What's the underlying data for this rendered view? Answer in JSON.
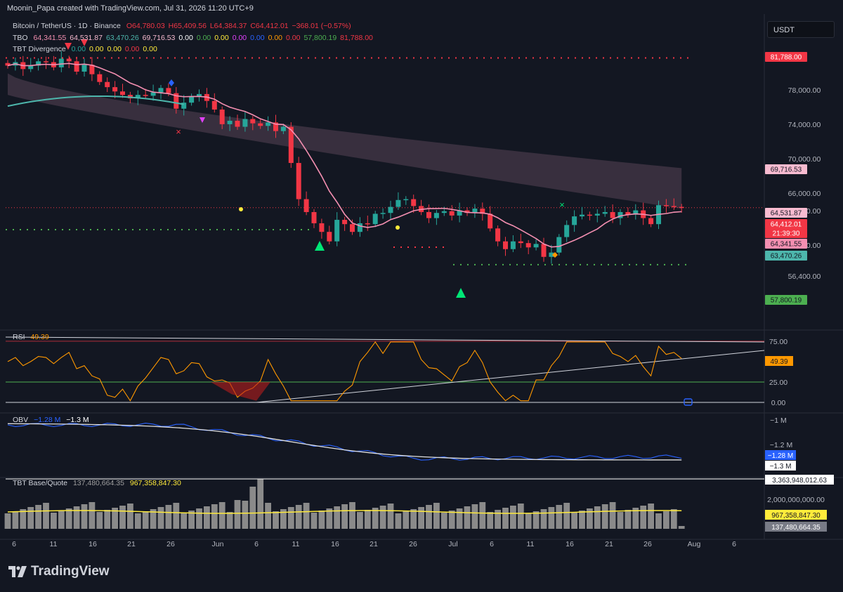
{
  "header": {
    "attribution": "Moonin_Papa created with TradingView.com, Jul 31, 2026 11:20 UTC+9",
    "symbol_button": "USDT"
  },
  "legend": {
    "line1": {
      "name": "Bitcoin / TetherUS · 1D · Binance",
      "o": "O64,780.03",
      "h": "H65,409.56",
      "l": "L64,384.37",
      "c": "C64,412.01",
      "chg": "−368.01 (−0.57%)"
    },
    "tbo": {
      "name": "TBO",
      "values": [
        "64,341.55",
        "64,531.87",
        "63,470.26",
        "69,716.53",
        "0.00",
        "0.00",
        "0.00",
        "0.00",
        "0.00",
        "0.00",
        "0.00",
        "57,800.19",
        "81,788.00"
      ]
    },
    "tbt_div": {
      "name": "TBT Divergence",
      "values": [
        "0.00",
        "0.00",
        "0.00",
        "0.00",
        "0.00"
      ]
    },
    "rsi": {
      "name": "RSI",
      "value": "49.39"
    },
    "obv": {
      "name": "OBV",
      "v1": "−1.28 M",
      "v2": "−1.3 M"
    },
    "tbt_bq": {
      "name": "TBT Base/Quote",
      "v1": "137,480,664.35",
      "v2": "967,358,847.30"
    }
  },
  "colors": {
    "bg": "#131722",
    "up": "#26a69a",
    "down": "#f23645",
    "pink": "#f48fb1",
    "teal": "#4db6ac",
    "rsi": "#ff9800",
    "obv": "#2962ff",
    "vol": "#8a8a8a",
    "vol_ma": "#ffeb3b",
    "green_dot": "#4caf50",
    "red_dot": "#f23645",
    "cloud": "#7d5b73"
  },
  "main_axis": {
    "ticks": [
      "78,000.00",
      "74,000.00",
      "70,000.00",
      "66,000.00",
      "64,000.00",
      "60,000.00",
      "56,400.00"
    ]
  },
  "price_tags": [
    {
      "label": "81,788.00",
      "bg": "#f23645",
      "fg": "#ffffff"
    },
    {
      "label": "69,716.53",
      "bg": "#f8bbd0",
      "fg": "#131722"
    },
    {
      "label": "64,531.87",
      "bg": "#f8bbd0",
      "fg": "#131722"
    },
    {
      "label": "64,412.01",
      "bg": "#f23645",
      "fg": "#ffffff"
    },
    {
      "label": "21:39:30",
      "bg": "#f23645",
      "fg": "#ffffff"
    },
    {
      "label": "64,341.55",
      "bg": "#f48fb1",
      "fg": "#131722"
    },
    {
      "label": "63,470.26",
      "bg": "#4db6ac",
      "fg": "#131722"
    },
    {
      "label": "57,800.19",
      "bg": "#4caf50",
      "fg": "#131722"
    }
  ],
  "rsi_axis": {
    "ticks": [
      "75.00",
      "25.00",
      "0.00"
    ],
    "tag": "49.39"
  },
  "obv_axis": {
    "ticks": [
      "−1 M",
      "−1.2 M"
    ],
    "tags": [
      "−1.28 M",
      "−1.3 M"
    ]
  },
  "vol_axis": {
    "ticks": [
      "2,000,000,000.00"
    ],
    "tags": [
      "3,363,948,012.63",
      "967,358,847.30",
      "137,480,664.35"
    ]
  },
  "x_labels": [
    "6",
    "11",
    "16",
    "21",
    "26",
    "Jun",
    "6",
    "11",
    "16",
    "21",
    "26",
    "Jul",
    "6",
    "11",
    "16",
    "21",
    "26",
    "Aug",
    "6"
  ],
  "chart_data": {
    "type": "candlestick",
    "symbol": "Bitcoin / TetherUS",
    "interval": "1D",
    "x": [
      "May 4",
      "May 5",
      "May 6",
      "May 7",
      "May 8",
      "May 9",
      "May 10",
      "May 11",
      "May 12",
      "May 13",
      "May 14",
      "May 15",
      "May 16",
      "May 17",
      "May 18",
      "May 19",
      "May 20",
      "May 21",
      "May 22",
      "May 23",
      "May 24",
      "May 25",
      "May 26",
      "May 27",
      "May 28",
      "May 29",
      "May 30",
      "May 31",
      "Jun 1",
      "Jun 2",
      "Jun 3",
      "Jun 4",
      "Jun 5",
      "Jun 6",
      "Jun 7",
      "Jun 8",
      "Jun 9",
      "Jun 10",
      "Jun 11",
      "Jun 12",
      "Jun 13",
      "Jun 14",
      "Jun 15",
      "Jun 16",
      "Jun 17",
      "Jun 18",
      "Jun 19",
      "Jun 20",
      "Jun 21",
      "Jun 22",
      "Jun 23",
      "Jun 24",
      "Jun 25",
      "Jun 26",
      "Jun 27",
      "Jun 28",
      "Jun 29",
      "Jun 30",
      "Jul 1",
      "Jul 2",
      "Jul 3",
      "Jul 4",
      "Jul 5",
      "Jul 6",
      "Jul 7",
      "Jul 8",
      "Jul 9",
      "Jul 10",
      "Jul 11",
      "Jul 12",
      "Jul 13",
      "Jul 14",
      "Jul 15",
      "Jul 16",
      "Jul 17",
      "Jul 18",
      "Jul 19",
      "Jul 20",
      "Jul 21",
      "Jul 22",
      "Jul 23",
      "Jul 24",
      "Jul 25",
      "Jul 26",
      "Jul 27",
      "Jul 28",
      "Jul 29",
      "Jul 30",
      "Jul 31"
    ],
    "close": [
      80900,
      81300,
      80500,
      80900,
      81400,
      81300,
      80700,
      81700,
      81400,
      80200,
      81000,
      79900,
      79000,
      78400,
      77900,
      77500,
      77100,
      77500,
      77400,
      77800,
      78300,
      77700,
      75900,
      76600,
      77300,
      77600,
      76800,
      75800,
      74100,
      74500,
      73800,
      74700,
      74200,
      73900,
      74300,
      73300,
      73800,
      69600,
      65400,
      63900,
      62600,
      61600,
      60500,
      63000,
      62500,
      61600,
      62600,
      62500,
      63700,
      63800,
      64500,
      65300,
      65400,
      64600,
      63900,
      63200,
      63800,
      64000,
      63500,
      64100,
      63800,
      64300,
      63700,
      62000,
      60500,
      59600,
      60500,
      60300,
      59800,
      60200,
      58700,
      59200,
      61000,
      62400,
      63400,
      63600,
      63500,
      63700,
      63900,
      63200,
      63900,
      63600,
      64100,
      63200,
      62500,
      64700,
      64600,
      64500,
      64400
    ],
    "price_axis": {
      "ticks": [
        78000,
        74000,
        70000,
        66000,
        64000,
        60000,
        56400
      ]
    },
    "levels": {
      "resistance_dotted": 81788.0,
      "support_dotted": 57800.19,
      "tbo_values": [
        64341.55,
        64531.87,
        63470.26,
        69716.53
      ]
    },
    "rsi": {
      "value": 49.39,
      "bands": [
        75,
        25
      ],
      "range": [
        0,
        80
      ]
    },
    "obv": {
      "values": [
        "−1.28 M",
        "−1.3 M"
      ]
    },
    "base_quote": {
      "values": [
        "137,480,664.35",
        "967,358,847.30"
      ],
      "max_tag": "3,363,948,012.63"
    }
  }
}
